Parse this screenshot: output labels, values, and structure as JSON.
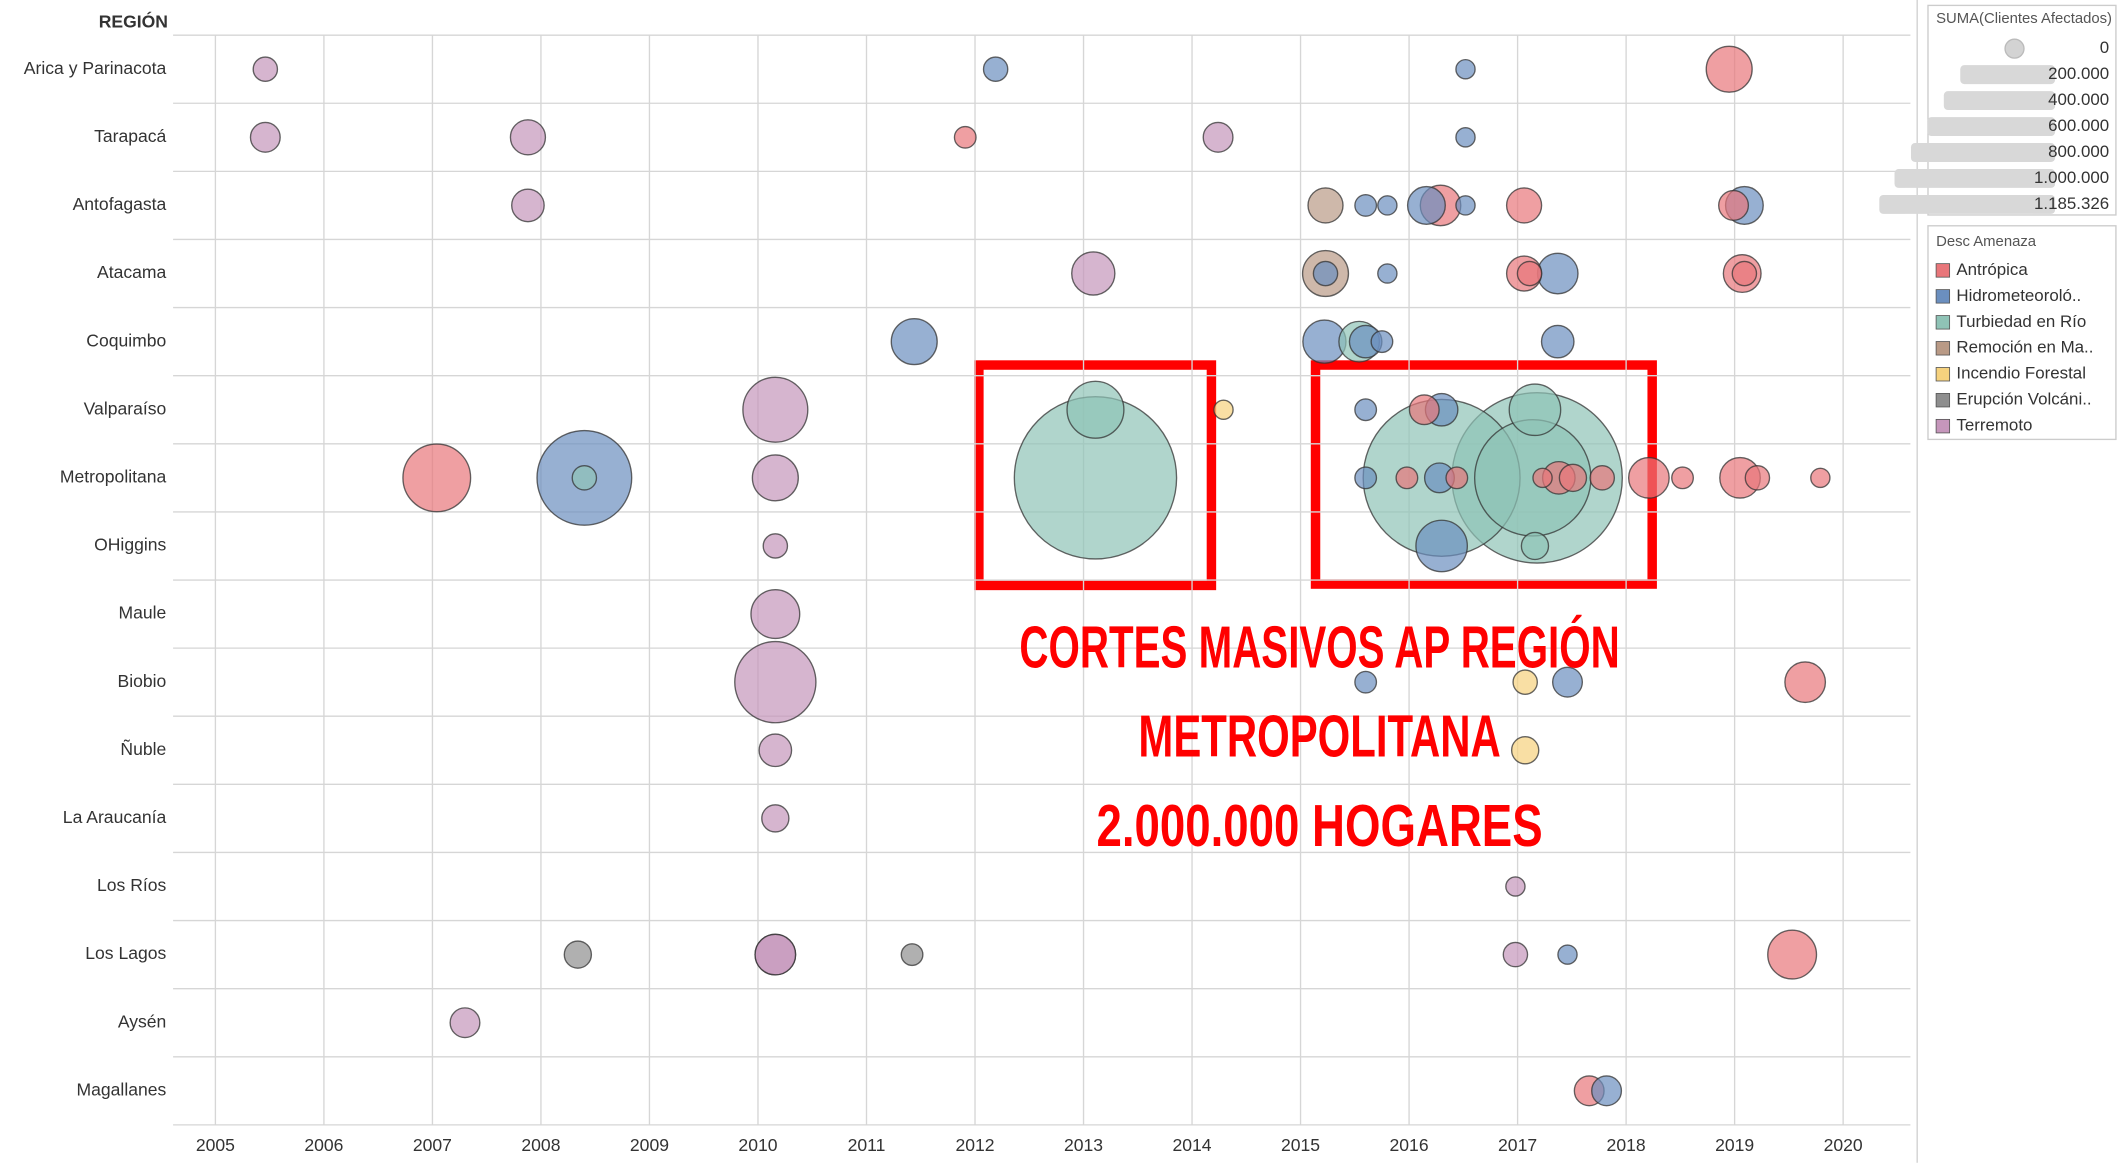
{
  "chart_data": {
    "type": "scatter",
    "y_axis_label": "REGIÓN",
    "categories": [
      "Arica y Parinacota",
      "Tarapacá",
      "Antofagasta",
      "Atacama",
      "Coquimbo",
      "Valparaíso",
      "Metropolitana",
      "OHiggins",
      "Maule",
      "Biobio",
      "Ñuble",
      "La Araucanía",
      "Los Ríos",
      "Los Lagos",
      "Aysén",
      "Magallanes"
    ],
    "xlim": [
      2004.61,
      2020.62
    ],
    "xticks": [
      2005,
      2006,
      2007,
      2008,
      2009,
      2010,
      2011,
      2012,
      2013,
      2014,
      2015,
      2016,
      2017,
      2018,
      2019,
      2020
    ],
    "grid": true,
    "legend_title": "Desc Amenaza",
    "size_legend": {
      "title": "SUMA(Clientes Afectados)",
      "ticks": [
        0,
        {
          "value": 200000,
          "label": "200.000"
        },
        {
          "value": 400000,
          "label": "400.000"
        },
        {
          "value": 600000,
          "label": "600.000"
        },
        {
          "value": 800000,
          "label": "800.000"
        },
        {
          "value": 1000000,
          "label": "1.000.000"
        },
        {
          "value": 1185326,
          "label": "1.185.326"
        }
      ]
    },
    "annotations": [
      "CORTES MASIVOS AP REGIÓN",
      "METROPOLITANA",
      "2.000.000 HOGARES"
    ],
    "series": [
      {
        "name": "Antrópica",
        "color": "#e8767a",
        "x": [
          2018.95,
          2011.91,
          2016.29,
          2017.06,
          2018.99,
          2017.06,
          2017.11,
          2019.07,
          2019.09,
          2016.14,
          2007.04,
          2015.98,
          2016.44,
          2017.23,
          2017.38,
          2017.51,
          2017.78,
          2018.21,
          2018.52,
          2019.05,
          2019.21,
          2019.79,
          2019.65,
          2019.53,
          2017.66
        ],
        "y": [
          "Arica y Parinacota",
          "Tarapacá",
          "Antofagasta",
          "Antofagasta",
          "Antofagasta",
          "Atacama",
          "Atacama",
          "Atacama",
          "Atacama",
          "Valparaíso",
          "Metropolitana",
          "Metropolitana",
          "Metropolitana",
          "Metropolitana",
          "Metropolitana",
          "Metropolitana",
          "Metropolitana",
          "Metropolitana",
          "Metropolitana",
          "Metropolitana",
          "Metropolitana",
          "Metropolitana",
          "Biobio",
          "Los Lagos",
          "Magallanes"
        ],
        "sizes": [
          86000,
          19000,
          67000,
          50000,
          36000,
          50000,
          24000,
          58000,
          24000,
          36000,
          187000,
          19000,
          19000,
          15000,
          43000,
          30000,
          24000,
          67000,
          19000,
          67000,
          24000,
          15000,
          67000,
          97000,
          36000
        ]
      },
      {
        "name": "Hidrometeoroló..",
        "color": "#6b8fbf",
        "x": [
          2012.19,
          2016.52,
          2016.52,
          2015.6,
          2015.8,
          2016.16,
          2016.52,
          2019.09,
          2015.23,
          2015.8,
          2017.37,
          2011.44,
          2015.22,
          2015.6,
          2015.75,
          2017.37,
          2015.6,
          2016.3,
          2008.4,
          2015.6,
          2016.28,
          2016.3,
          2015.6,
          2017.46,
          2017.46,
          2017.82
        ],
        "y": [
          "Arica y Parinacota",
          "Arica y Parinacota",
          "Tarapacá",
          "Antofagasta",
          "Antofagasta",
          "Antofagasta",
          "Antofagasta",
          "Antofagasta",
          "Atacama",
          "Atacama",
          "Atacama",
          "Coquimbo",
          "Coquimbo",
          "Coquimbo",
          "Coquimbo",
          "Coquimbo",
          "Valparaíso",
          "Valparaíso",
          "Metropolitana",
          "Metropolitana",
          "Metropolitana",
          "OHiggins",
          "Biobio",
          "Biobio",
          "Los Lagos",
          "Magallanes"
        ],
        "sizes": [
          24000,
          15000,
          15000,
          19000,
          15000,
          58000,
          15000,
          58000,
          24000,
          15000,
          67000,
          86000,
          76000,
          43000,
          19000,
          43000,
          19000,
          43000,
          366000,
          19000,
          36000,
          108000,
          19000,
          36000,
          15000,
          36000
        ]
      },
      {
        "name": "Turbiedad en Río",
        "color": "#8fc3b6",
        "x": [
          2015.54,
          2013.11,
          2017.16,
          2008.4,
          2013.11,
          2016.3,
          2017.18,
          2017.14,
          2017.16
        ],
        "y": [
          "Coquimbo",
          "Valparaíso",
          "Valparaíso",
          "Metropolitana",
          "Metropolitana",
          "Metropolitana",
          "Metropolitana",
          "Metropolitana",
          "OHiggins"
        ],
        "sizes": [
          67000,
          132000,
          108000,
          24000,
          1075000,
          1005000,
          1185326,
          552000,
          30000
        ]
      },
      {
        "name": "Remoción en Ma..",
        "color": "#b99a86",
        "x": [
          2015.23,
          2015.23
        ],
        "y": [
          "Antofagasta",
          "Atacama"
        ],
        "sizes": [
          50000,
          86000
        ]
      },
      {
        "name": "Incendio Forestal",
        "color": "#f6d27e",
        "x": [
          2014.29,
          2017.07,
          2017.07
        ],
        "y": [
          "Valparaíso",
          "Biobio",
          "Ñuble"
        ],
        "sizes": [
          15000,
          24000,
          30000
        ]
      },
      {
        "name": "Erupción Volcáni..",
        "color": "#8e8e8e",
        "x": [
          2008.34,
          2011.42
        ],
        "y": [
          "Los Lagos",
          "Los Lagos"
        ],
        "sizes": [
          30000,
          19000
        ]
      },
      {
        "name": "Terremoto",
        "color": "#c596bb",
        "x": [
          2005.46,
          2005.46,
          2007.88,
          2014.24,
          2007.88,
          2013.09,
          2010.16,
          2010.16,
          2010.16,
          2010.16,
          2010.16,
          2010.16,
          2010.16,
          2010.16,
          2016.98,
          2016.98,
          2010.16,
          2007.3
        ],
        "y": [
          "Arica y Parinacota",
          "Tarapacá",
          "Tarapacá",
          "Tarapacá",
          "Antofagasta",
          "Atacama",
          "Valparaíso",
          "Metropolitana",
          "OHiggins",
          "Maule",
          "Biobio",
          "Ñuble",
          "La Araucanía",
          "Los Lagos",
          "Los Ríos",
          "Los Lagos",
          "Los Lagos",
          "Aysén"
        ],
        "sizes": [
          24000,
          36000,
          50000,
          36000,
          43000,
          76000,
          172000,
          86000,
          24000,
          97000,
          269000,
          43000,
          30000,
          67000,
          15000,
          24000,
          67000,
          36000
        ]
      }
    ]
  }
}
